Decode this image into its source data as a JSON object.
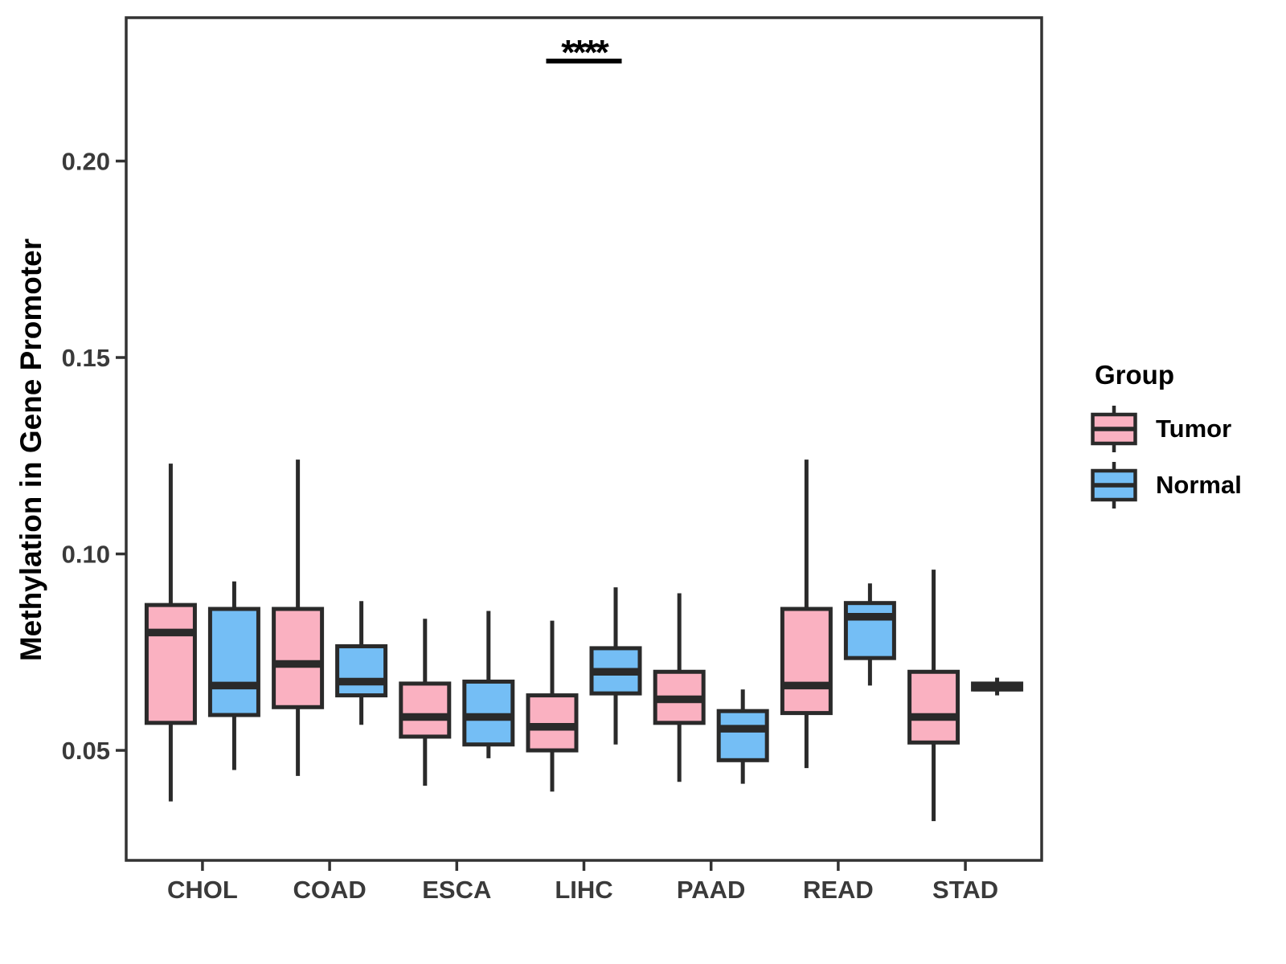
{
  "chart_data": {
    "type": "boxplot",
    "title": "",
    "ylabel": "Methylation in Gene Promoter",
    "xlabel": "",
    "categories": [
      "CHOL",
      "COAD",
      "ESCA",
      "LIHC",
      "PAAD",
      "READ",
      "STAD"
    ],
    "y_ticks": [
      0.05,
      0.1,
      0.15,
      0.2
    ],
    "ylim": [
      0.022,
      0.2365
    ],
    "grid": false,
    "legend_position": "right",
    "legend_title": "Group",
    "annotation": {
      "text": "****",
      "category": "LIHC",
      "underlined": true
    },
    "series": [
      {
        "name": "Tumor",
        "color": "#FAB1C1",
        "boxes": [
          {
            "category": "CHOL",
            "low": 0.037,
            "q1": 0.057,
            "median": 0.08,
            "q3": 0.087,
            "high": 0.123
          },
          {
            "category": "COAD",
            "low": 0.0435,
            "q1": 0.061,
            "median": 0.072,
            "q3": 0.086,
            "high": 0.124
          },
          {
            "category": "ESCA",
            "low": 0.041,
            "q1": 0.0535,
            "median": 0.0585,
            "q3": 0.067,
            "high": 0.0835
          },
          {
            "category": "LIHC",
            "low": 0.0395,
            "q1": 0.05,
            "median": 0.056,
            "q3": 0.064,
            "high": 0.083
          },
          {
            "category": "PAAD",
            "low": 0.042,
            "q1": 0.057,
            "median": 0.063,
            "q3": 0.07,
            "high": 0.09
          },
          {
            "category": "READ",
            "low": 0.0455,
            "q1": 0.0595,
            "median": 0.0665,
            "q3": 0.086,
            "high": 0.124
          },
          {
            "category": "STAD",
            "low": 0.032,
            "q1": 0.052,
            "median": 0.0585,
            "q3": 0.07,
            "high": 0.096
          }
        ]
      },
      {
        "name": "Normal",
        "color": "#74BEF5",
        "boxes": [
          {
            "category": "CHOL",
            "low": 0.045,
            "q1": 0.059,
            "median": 0.0665,
            "q3": 0.086,
            "high": 0.093
          },
          {
            "category": "COAD",
            "low": 0.0565,
            "q1": 0.064,
            "median": 0.0675,
            "q3": 0.0765,
            "high": 0.088
          },
          {
            "category": "ESCA",
            "low": 0.048,
            "q1": 0.0515,
            "median": 0.0585,
            "q3": 0.0675,
            "high": 0.0855
          },
          {
            "category": "LIHC",
            "low": 0.0515,
            "q1": 0.0645,
            "median": 0.07,
            "q3": 0.076,
            "high": 0.0915
          },
          {
            "category": "PAAD",
            "low": 0.0415,
            "q1": 0.0475,
            "median": 0.0555,
            "q3": 0.06,
            "high": 0.0655
          },
          {
            "category": "READ",
            "low": 0.0665,
            "q1": 0.0735,
            "median": 0.084,
            "q3": 0.0875,
            "high": 0.0925
          },
          {
            "category": "STAD",
            "low": 0.064,
            "q1": 0.0655,
            "median": 0.066,
            "q3": 0.067,
            "high": 0.0685
          }
        ]
      }
    ],
    "colors": {
      "box_stroke": "#2A2A2A",
      "axis": "#333333",
      "tick_label": "#3A3A3A",
      "text": "#000000",
      "background": "#FFFFFF"
    }
  }
}
